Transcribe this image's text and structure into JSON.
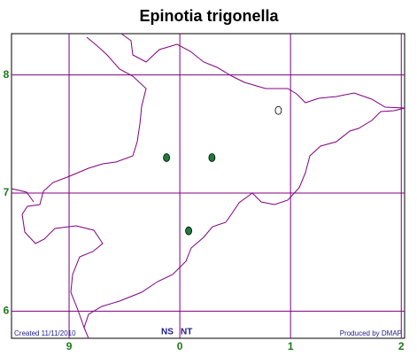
{
  "title": "Epinotia trigonella",
  "grid": {
    "eastings": [
      {
        "value": -1,
        "label": "9"
      },
      0,
      1,
      2
    ],
    "northings": [
      8,
      7,
      6
    ],
    "xlim": [
      -1.52,
      2.03
    ],
    "ylim": [
      5.77,
      8.35
    ],
    "color": "#800080"
  },
  "records": [
    {
      "easting": -0.12,
      "northing": 7.3,
      "fill": "#1f7a3e"
    },
    {
      "easting": 0.29,
      "northing": 7.3,
      "fill": "#1f7a3e"
    },
    {
      "easting": 0.08,
      "northing": 6.68,
      "fill": "#1f7a3e"
    },
    {
      "easting": 0.89,
      "northing": 7.7,
      "fill": "#ffffff"
    }
  ],
  "footer": {
    "created": "Created 11/11/2010",
    "square_ns": "NS",
    "square_nt": "NT",
    "producer": "Produced by DMAP"
  }
}
